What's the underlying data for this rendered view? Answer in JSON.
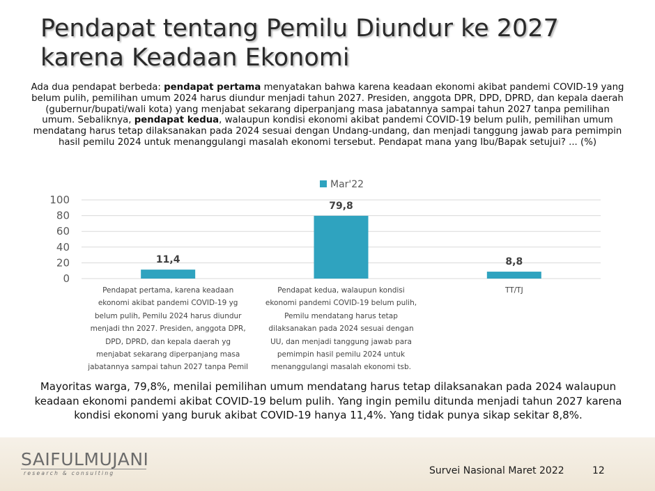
{
  "slide": {
    "title_line1": "Pendapat tentang Pemilu Diundur ke 2027",
    "title_line2": "karena Keadaan Ekonomi",
    "question": {
      "part1": "Ada dua pendapat berbeda: ",
      "bold1": "pendapat pertama",
      "part2": " menyatakan bahwa karena keadaan ekonomi akibat pandemi COVID-19 yang belum pulih, pemilihan umum 2024 harus diundur menjadi tahun 2027. Presiden, anggota DPR, DPD, DPRD, dan kepala daerah (gubernur/bupati/wali kota) yang menjabat sekarang diperpanjang masa jabatannya sampai tahun 2027 tanpa pemilihan umum.  Sebaliknya, ",
      "bold2": "pendapat kedua",
      "part3": ", walaupun kondisi ekonomi akibat pandemi COVID-19 belum pulih, pemilihan umum mendatang harus tetap dilaksanakan pada 2024 sesuai dengan Undang-undang, dan menjadi tanggung jawab para pemimpin hasil pemilu 2024 untuk menanggulangi masalah ekonomi tersebut. Pendapat mana yang Ibu/Bapak setujui? ... (%)"
    },
    "summary": "Mayoritas warga, 79,8%, menilai pemilihan umum mendatang harus tetap dilaksanakan pada 2024 walaupun keadaan ekonomi pandemi akibat COVID-19 belum pulih. Yang ingin pemilu ditunda menjadi tahun 2027 karena kondisi ekonomi yang buruk akibat COVID-19 hanya 11,4%. Yang tidak punya sikap sekitar 8,8%.",
    "footer": {
      "logo_main": "SAIFULMUJANI",
      "logo_sub": "research & consulting",
      "survey": "Survei Nasional Maret 2022",
      "page": "12"
    }
  },
  "chart_data": {
    "type": "bar",
    "categories": [
      "Pendapat pertama, karena keadaan ekonomi akibat pandemi COVID-19 yg belum pulih, Pemilu 2024 harus diundur menjadi thn 2027. Presiden, anggota DPR, DPD, DPRD, dan kepala daerah yg menjabat sekarang diperpanjang masa jabatannya sampai tahun 2027 tanpa Pemil",
      "Pendapat kedua, walaupun kondisi ekonomi pandemi COVID-19 belum pulih, Pemilu mendatang harus tetap dilaksanakan pada 2024 sesuai dengan UU, dan menjadi tanggung jawab para pemimpin hasil pemilu 2024 untuk menanggulangi masalah ekonomi tsb.",
      "TT/TJ"
    ],
    "category_lines": [
      [
        "Pendapat pertama, karena keadaan",
        "ekonomi akibat pandemi COVID-19 yg",
        "belum pulih, Pemilu 2024 harus diundur",
        "menjadi thn 2027. Presiden, anggota DPR,",
        "DPD, DPRD, dan kepala daerah yg",
        "menjabat sekarang diperpanjang masa",
        "jabatannya sampai tahun 2027 tanpa Pemil"
      ],
      [
        "Pendapat kedua, walaupun kondisi",
        "ekonomi pandemi COVID-19 belum pulih,",
        "Pemilu mendatang harus tetap",
        "dilaksanakan pada 2024 sesuai dengan",
        "UU, dan menjadi tanggung jawab para",
        "pemimpin hasil pemilu 2024 untuk",
        "menanggulangi masalah ekonomi tsb."
      ],
      [
        "TT/TJ"
      ]
    ],
    "series": [
      {
        "name": "Mar'22",
        "values": [
          11.4,
          79.8,
          8.8
        ],
        "labels": [
          "11,4",
          "79,8",
          "8,8"
        ]
      }
    ],
    "ylim": [
      0,
      100
    ],
    "yticks": [
      0,
      20,
      40,
      60,
      80,
      100
    ],
    "grid": true,
    "legend": "top",
    "colors": {
      "bar": "#2fa3bf",
      "grid": "#d9d9d9",
      "axis_text": "#595959"
    }
  }
}
